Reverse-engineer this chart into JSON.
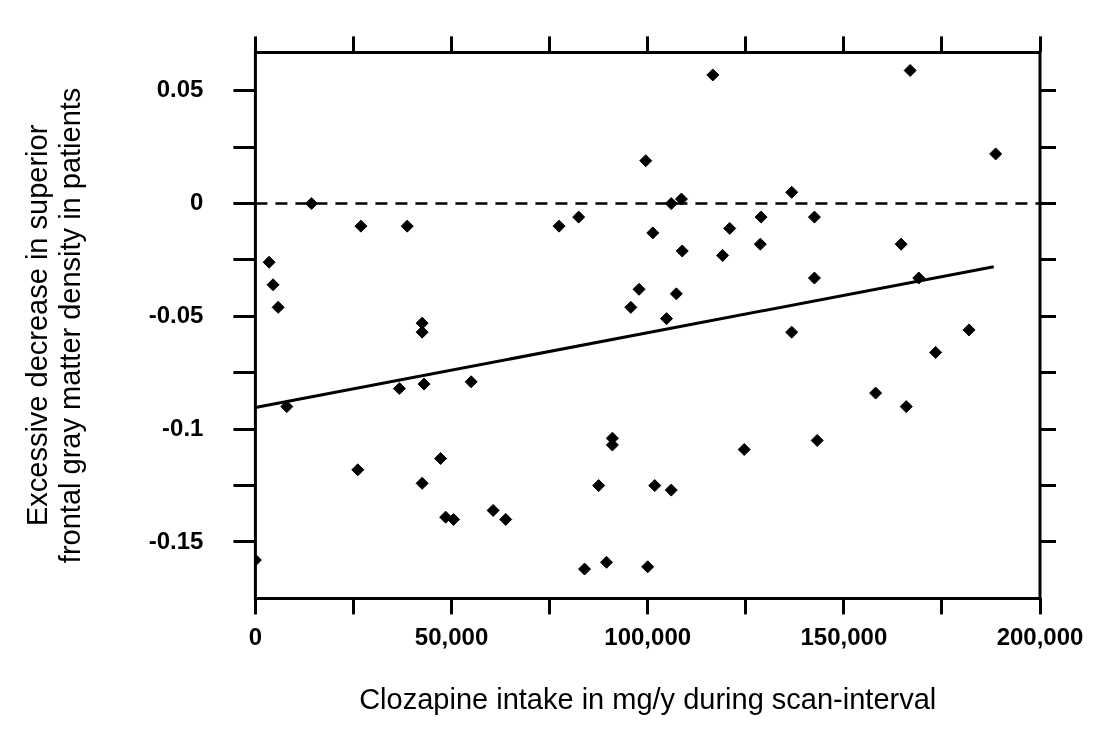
{
  "chart_data": {
    "type": "scatter",
    "xlabel": "Clozapine intake in mg/y during scan-interval",
    "ylabel": "Excessive decrease in superior\nfrontal gray matter density in patients",
    "xlim": [
      0,
      200000
    ],
    "ylim": [
      -0.175,
      0.067
    ],
    "xticks": [
      0,
      {
        "value": 25000,
        "label": null
      },
      {
        "value": 50000,
        "label": "50,000"
      },
      {
        "value": 75000,
        "label": null
      },
      {
        "value": 100000,
        "label": "100,000"
      },
      {
        "value": 125000,
        "label": null
      },
      {
        "value": 150000,
        "label": "150,000"
      },
      {
        "value": 175000,
        "label": null
      },
      {
        "value": 200000,
        "label": "200,000"
      }
    ],
    "yticks": [
      {
        "value": -0.15,
        "label": "-0.15"
      },
      {
        "value": -0.125,
        "label": null
      },
      {
        "value": -0.1,
        "label": "-0.1"
      },
      {
        "value": -0.075,
        "label": null
      },
      {
        "value": -0.05,
        "label": "-0.05"
      },
      {
        "value": -0.025,
        "label": null
      },
      0,
      {
        "value": 0.025,
        "label": null
      },
      {
        "value": 0.05,
        "label": "0.05"
      }
    ],
    "grid": false,
    "legend": false,
    "marker": "diamond",
    "ref_lines": [
      {
        "axis": "y",
        "value": 0,
        "line_style": "dashed",
        "color": "#000000"
      }
    ],
    "series": [
      {
        "type": "scatter",
        "color": "#000000",
        "x": [
          0,
          8000,
          36700,
          43000,
          55000,
          26100,
          42500,
          47200,
          48500,
          50500,
          60600,
          63800,
          83900,
          87500,
          89500,
          91000,
          91000,
          42500,
          42500,
          3500,
          4500,
          5800,
          14300,
          26900,
          38700,
          77400,
          82400,
          95700,
          97800,
          116600,
          166900,
          99500,
          188700,
          106000,
          108600,
          136700,
          101300,
          120900,
          128900,
          142500,
          108800,
          119100,
          128700,
          164600,
          142500,
          169100,
          107300,
          104800,
          136700,
          181900,
          173400,
          158100,
          165900,
          124600,
          143200,
          101800,
          106000,
          100000
        ],
        "values": [
          -0.158,
          -0.09,
          -0.082,
          -0.08,
          -0.079,
          -0.118,
          -0.124,
          -0.113,
          -0.139,
          -0.14,
          -0.136,
          -0.14,
          -0.162,
          -0.125,
          -0.159,
          -0.104,
          -0.107,
          -0.053,
          -0.057,
          -0.026,
          -0.036,
          -0.046,
          0,
          -0.01,
          -0.01,
          -0.01,
          -0.006,
          -0.046,
          -0.038,
          0.057,
          0.059,
          0.019,
          0.022,
          0,
          0.002,
          0.005,
          -0.013,
          -0.011,
          -0.006,
          -0.006,
          -0.021,
          -0.023,
          -0.018,
          -0.018,
          -0.033,
          -0.033,
          -0.04,
          -0.051,
          -0.057,
          -0.056,
          -0.066,
          -0.084,
          -0.09,
          -0.109,
          -0.105,
          -0.125,
          -0.127,
          -0.161
        ]
      },
      {
        "type": "line",
        "color": "#000000",
        "marker": "none",
        "line_style": "solid",
        "x": [
          0,
          188200
        ],
        "values": [
          -0.0904,
          -0.028
        ]
      }
    ]
  }
}
